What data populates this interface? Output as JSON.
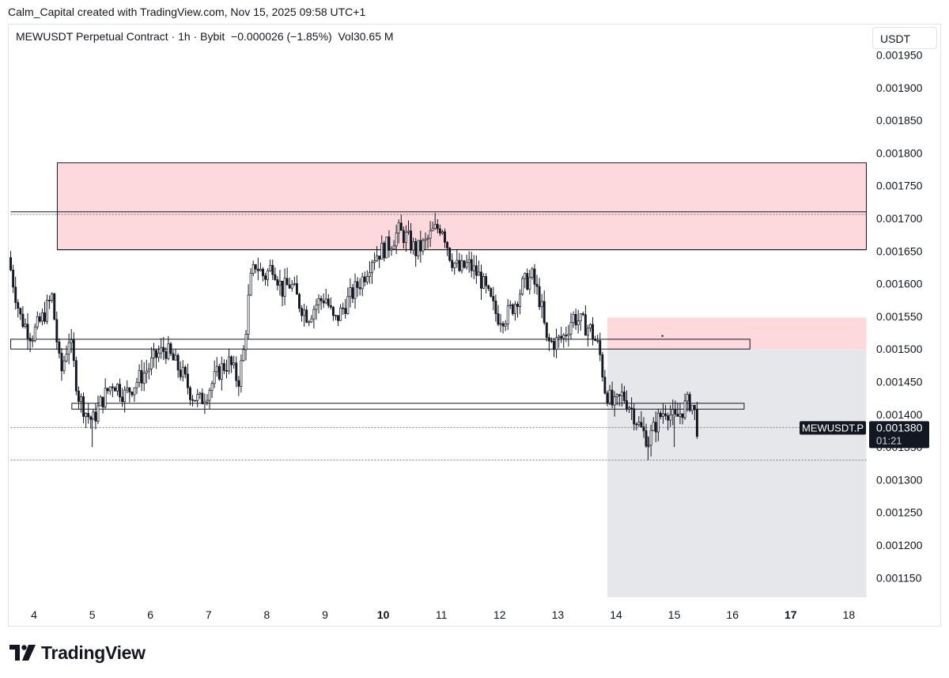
{
  "header": {
    "credit": "Calm_Capital created with TradingView.com, Nov 15, 2025 09:58 UTC+1",
    "legend": "MEWUSDT Perpetual Contract · 1h · Bybit  −0.000026 (−1.85%)  Vol30.65 M",
    "currency": "USDT"
  },
  "footer": {
    "brand": "TradingView"
  },
  "chart_data": {
    "type": "candlestick",
    "symbol": "MEWUSDT.P",
    "last_price": "0.001380",
    "countdown": "01:21",
    "x_ticks": [
      {
        "label": "4",
        "day": 4,
        "bold": false
      },
      {
        "label": "5",
        "day": 5,
        "bold": false
      },
      {
        "label": "6",
        "day": 6,
        "bold": false
      },
      {
        "label": "7",
        "day": 7,
        "bold": false
      },
      {
        "label": "8",
        "day": 8,
        "bold": false
      },
      {
        "label": "9",
        "day": 9,
        "bold": false
      },
      {
        "label": "10",
        "day": 10,
        "bold": true
      },
      {
        "label": "11",
        "day": 11,
        "bold": false
      },
      {
        "label": "12",
        "day": 12,
        "bold": false
      },
      {
        "label": "13",
        "day": 13,
        "bold": false
      },
      {
        "label": "14",
        "day": 14,
        "bold": false
      },
      {
        "label": "15",
        "day": 15,
        "bold": false
      },
      {
        "label": "16",
        "day": 16,
        "bold": false
      },
      {
        "label": "17",
        "day": 17,
        "bold": true
      },
      {
        "label": "18",
        "day": 18,
        "bold": false
      }
    ],
    "y_ticks": [
      "0.001950",
      "0.001900",
      "0.001850",
      "0.001800",
      "0.001750",
      "0.001700",
      "0.001650",
      "0.001600",
      "0.001550",
      "0.001500",
      "0.001450",
      "0.001400",
      "0.001350",
      "0.001300",
      "0.001250",
      "0.001200",
      "0.001150"
    ],
    "ylim": [
      0.00112,
      0.00198
    ],
    "xlim": [
      3.6,
      18.3
    ],
    "price_path": [
      [
        3.6,
        0.00164
      ],
      [
        3.8,
        0.00155
      ],
      [
        4.0,
        0.00152
      ],
      [
        4.2,
        0.00155
      ],
      [
        4.35,
        0.00158
      ],
      [
        4.5,
        0.00146
      ],
      [
        4.65,
        0.00152
      ],
      [
        4.8,
        0.00143
      ],
      [
        4.95,
        0.0014
      ],
      [
        5.05,
        0.00139
      ],
      [
        5.2,
        0.00142
      ],
      [
        5.4,
        0.00145
      ],
      [
        5.6,
        0.00143
      ],
      [
        5.8,
        0.00145
      ],
      [
        6.0,
        0.00147
      ],
      [
        6.15,
        0.00149
      ],
      [
        6.3,
        0.0015
      ],
      [
        6.45,
        0.00148
      ],
      [
        6.6,
        0.00146
      ],
      [
        6.75,
        0.00143
      ],
      [
        6.9,
        0.00142
      ],
      [
        7.05,
        0.00144
      ],
      [
        7.25,
        0.00147
      ],
      [
        7.4,
        0.00148
      ],
      [
        7.55,
        0.00145
      ],
      [
        7.65,
        0.0015
      ],
      [
        7.75,
        0.0016
      ],
      [
        7.85,
        0.00163
      ],
      [
        8.0,
        0.00161
      ],
      [
        8.15,
        0.00163
      ],
      [
        8.3,
        0.00159
      ],
      [
        8.45,
        0.0016
      ],
      [
        8.6,
        0.00157
      ],
      [
        8.75,
        0.00155
      ],
      [
        8.9,
        0.00157
      ],
      [
        9.05,
        0.00158
      ],
      [
        9.2,
        0.00154
      ],
      [
        9.4,
        0.00157
      ],
      [
        9.55,
        0.00159
      ],
      [
        9.7,
        0.00161
      ],
      [
        9.85,
        0.00164
      ],
      [
        10.0,
        0.00165
      ],
      [
        10.15,
        0.00166
      ],
      [
        10.3,
        0.00168
      ],
      [
        10.45,
        0.00167
      ],
      [
        10.6,
        0.00165
      ],
      [
        10.75,
        0.00166
      ],
      [
        10.9,
        0.00168
      ],
      [
        11.05,
        0.00169
      ],
      [
        11.2,
        0.00164
      ],
      [
        11.35,
        0.00162
      ],
      [
        11.5,
        0.00163
      ],
      [
        11.7,
        0.00161
      ],
      [
        11.85,
        0.00158
      ],
      [
        12.0,
        0.00155
      ],
      [
        12.15,
        0.00155
      ],
      [
        12.3,
        0.00157
      ],
      [
        12.45,
        0.0016
      ],
      [
        12.6,
        0.00161
      ],
      [
        12.75,
        0.00157
      ],
      [
        12.85,
        0.00151
      ],
      [
        13.0,
        0.00151
      ],
      [
        13.15,
        0.00152
      ],
      [
        13.3,
        0.00155
      ],
      [
        13.45,
        0.00154
      ],
      [
        13.6,
        0.00153
      ],
      [
        13.75,
        0.0015
      ],
      [
        13.85,
        0.00144
      ],
      [
        14.0,
        0.00141
      ],
      [
        14.15,
        0.00143
      ],
      [
        14.3,
        0.00141
      ],
      [
        14.45,
        0.00138
      ],
      [
        14.6,
        0.00136
      ],
      [
        14.75,
        0.00139
      ],
      [
        14.9,
        0.00141
      ],
      [
        15.05,
        0.00139
      ],
      [
        15.2,
        0.00141
      ],
      [
        15.3,
        0.00142
      ],
      [
        15.38,
        0.00141
      ],
      [
        15.42,
        0.00138
      ]
    ],
    "wick_spikes": [
      [
        5.0,
        0.00135
      ],
      [
        5.05,
        0.00139
      ],
      [
        14.55,
        0.00133
      ],
      [
        15.0,
        0.00135
      ]
    ],
    "horizontal_lines": [
      {
        "price": 0.00171,
        "from_day": 3.6,
        "to_day": 18.3,
        "style": "solid"
      },
      {
        "price": 0.001706,
        "from_day": 3.6,
        "to_day": 18.3,
        "style": "dotted"
      },
      {
        "price": 0.00138,
        "from_day": 3.6,
        "to_day": 18.3,
        "style": "dotted"
      },
      {
        "price": 0.00133,
        "from_day": 3.6,
        "to_day": 18.3,
        "style": "dotted"
      }
    ],
    "zones": [
      {
        "kind": "supply",
        "from_day": 4.4,
        "to_day": 18.3,
        "price_top": 0.001785,
        "price_bottom": 0.001652,
        "fill": "#fdd9dd"
      },
      {
        "kind": "supply",
        "from_day": 13.85,
        "to_day": 18.3,
        "price_top": 0.001548,
        "price_bottom": 0.0015,
        "fill": "#fdd9dd"
      },
      {
        "kind": "projection",
        "from_day": 13.85,
        "to_day": 18.3,
        "price_top": 0.0015,
        "price_bottom": 0.00112,
        "fill": "#e6e7ea"
      }
    ],
    "levels_boxes": [
      {
        "from_day": 3.6,
        "to_day": 16.3,
        "price_top": 0.001515,
        "price_bottom": 0.0015
      },
      {
        "from_day": 4.65,
        "to_day": 16.2,
        "price_top": 0.001417,
        "price_bottom": 0.001408
      }
    ],
    "colors": {
      "candle": "#131722",
      "grid_text": "#131722",
      "tag_bg": "#131722",
      "tag_text": "#ffffff",
      "zone": "#fdd9dd",
      "projection": "#e6e7ea"
    }
  }
}
